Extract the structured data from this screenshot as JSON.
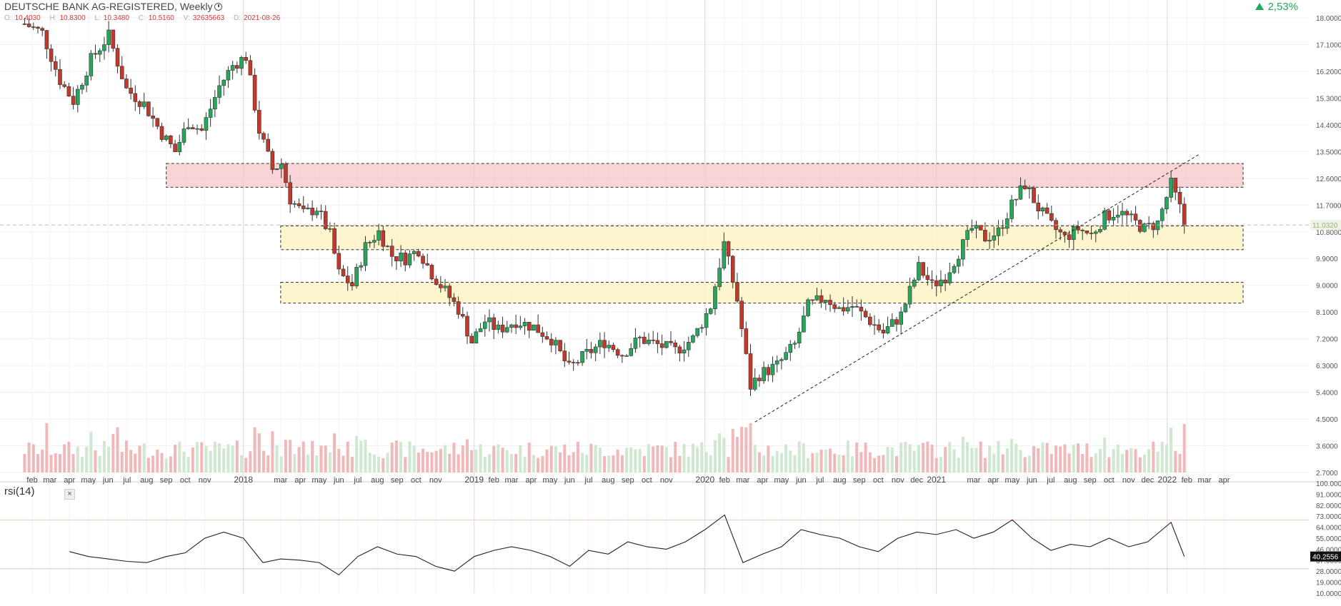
{
  "header": {
    "title": "DEUTSCHE BANK AG-REGISTERED, Weekly",
    "ohlc": [
      {
        "key": "O:",
        "value": "10.4030"
      },
      {
        "key": "H:",
        "value": "10.8300"
      },
      {
        "key": "L:",
        "value": "10.3480"
      },
      {
        "key": "C:",
        "value": "10.5160"
      },
      {
        "key": "V:",
        "value": "32635663"
      },
      {
        "key": "D:",
        "value": "2021-08-26"
      }
    ],
    "change": "2,53%"
  },
  "rsi_panel": {
    "label": "rsi(14)",
    "close_glyph": "×"
  },
  "colors": {
    "up": "#26a65b",
    "down": "#c0392b",
    "up_vol": "#cfe8cf",
    "down_vol": "#f0b8b8",
    "resistance_zone": "#f5c6c8",
    "support_zone": "#fbf3c4",
    "rsi_line": "#222222"
  },
  "chart_data": [
    {
      "type": "candlestick",
      "title": "DEUTSCHE BANK AG-REGISTERED, Weekly",
      "ylim": [
        2.7,
        18.0
      ],
      "y_ticks": [
        "18.0000",
        "17.1000",
        "16.2000",
        "15.3000",
        "14.4000",
        "13.5000",
        "12.6000",
        "11.7000",
        "10.8000",
        "9.9000",
        "9.0000",
        "8.1000",
        "7.2000",
        "6.3000",
        "5.4000",
        "4.5000",
        "3.6000",
        "2.7000"
      ],
      "x_ticks": [
        "feb",
        "mar",
        "apr",
        "may",
        "jun",
        "jul",
        "aug",
        "sep",
        "oct",
        "nov",
        "2018",
        "mar",
        "apr",
        "may",
        "jun",
        "jul",
        "aug",
        "sep",
        "oct",
        "nov",
        "2019",
        "feb",
        "mar",
        "apr",
        "may",
        "jun",
        "jul",
        "aug",
        "sep",
        "oct",
        "nov",
        "2020",
        "feb",
        "mar",
        "apr",
        "may",
        "jun",
        "jul",
        "aug",
        "sep",
        "oct",
        "nov",
        "dec",
        "2021",
        "mar",
        "apr",
        "may",
        "jun",
        "jul",
        "aug",
        "sep",
        "oct",
        "nov",
        "dec",
        "2022",
        "feb",
        "mar",
        "apr"
      ],
      "x_range": [
        "2017-01-15",
        "2022-05-01"
      ],
      "current_price_label": "11.0320",
      "close_series": [
        [
          "2017-01-20",
          17.8
        ],
        [
          "2017-02-17",
          17.5
        ],
        [
          "2017-03-17",
          15.9
        ],
        [
          "2017-04-07",
          15.2
        ],
        [
          "2017-05-05",
          16.6
        ],
        [
          "2017-06-02",
          17.4
        ],
        [
          "2017-06-30",
          15.6
        ],
        [
          "2017-07-28",
          15.1
        ],
        [
          "2017-08-25",
          14.1
        ],
        [
          "2017-09-15",
          13.5
        ],
        [
          "2017-10-06",
          14.5
        ],
        [
          "2017-10-27",
          14.2
        ],
        [
          "2017-11-24",
          15.7
        ],
        [
          "2017-12-15",
          16.4
        ],
        [
          "2018-01-05",
          16.7
        ],
        [
          "2018-01-26",
          14.2
        ],
        [
          "2018-02-16",
          12.9
        ],
        [
          "2018-03-02",
          13.1
        ],
        [
          "2018-03-16",
          11.9
        ],
        [
          "2018-04-06",
          11.4
        ],
        [
          "2018-04-27",
          11.6
        ],
        [
          "2018-05-18",
          10.7
        ],
        [
          "2018-06-01",
          9.4
        ],
        [
          "2018-06-22",
          9.0
        ],
        [
          "2018-07-13",
          10.3
        ],
        [
          "2018-08-03",
          10.8
        ],
        [
          "2018-08-24",
          10.0
        ],
        [
          "2018-09-14",
          9.9
        ],
        [
          "2018-10-05",
          10.2
        ],
        [
          "2018-10-26",
          9.4
        ],
        [
          "2018-11-16",
          8.8
        ],
        [
          "2018-12-07",
          8.2
        ],
        [
          "2018-12-28",
          7.1
        ],
        [
          "2019-01-18",
          7.8
        ],
        [
          "2019-02-08",
          7.5
        ],
        [
          "2019-03-08",
          7.8
        ],
        [
          "2019-04-05",
          7.6
        ],
        [
          "2019-05-03",
          7.2
        ],
        [
          "2019-05-31",
          6.2
        ],
        [
          "2019-06-28",
          6.7
        ],
        [
          "2019-07-26",
          7.1
        ],
        [
          "2019-08-23",
          6.7
        ],
        [
          "2019-09-20",
          7.2
        ],
        [
          "2019-10-18",
          7.0
        ],
        [
          "2019-11-15",
          6.8
        ],
        [
          "2019-12-13",
          7.2
        ],
        [
          "2020-01-10",
          8.3
        ],
        [
          "2020-01-31",
          10.4
        ],
        [
          "2020-02-21",
          8.5
        ],
        [
          "2020-03-13",
          5.6
        ],
        [
          "2020-03-27",
          6.0
        ],
        [
          "2020-04-24",
          6.3
        ],
        [
          "2020-05-22",
          7.0
        ],
        [
          "2020-06-12",
          8.3
        ],
        [
          "2020-07-10",
          8.6
        ],
        [
          "2020-07-31",
          8.2
        ],
        [
          "2020-08-21",
          8.3
        ],
        [
          "2020-09-18",
          7.8
        ],
        [
          "2020-10-09",
          7.4
        ],
        [
          "2020-11-06",
          8.0
        ],
        [
          "2020-12-04",
          9.6
        ],
        [
          "2020-12-25",
          9.0
        ],
        [
          "2021-01-15",
          9.3
        ],
        [
          "2021-02-05",
          10.1
        ],
        [
          "2021-02-26",
          10.9
        ],
        [
          "2021-03-19",
          10.6
        ],
        [
          "2021-04-09",
          10.8
        ],
        [
          "2021-04-30",
          11.7
        ],
        [
          "2021-05-21",
          12.4
        ],
        [
          "2021-06-11",
          11.6
        ],
        [
          "2021-07-02",
          11.0
        ],
        [
          "2021-07-23",
          10.6
        ],
        [
          "2021-08-13",
          10.9
        ],
        [
          "2021-09-03",
          10.7
        ],
        [
          "2021-09-24",
          11.3
        ],
        [
          "2021-10-15",
          11.5
        ],
        [
          "2021-11-05",
          11.2
        ],
        [
          "2021-11-26",
          10.9
        ],
        [
          "2021-12-17",
          11.1
        ],
        [
          "2022-01-07",
          12.4
        ],
        [
          "2022-01-21",
          11.6
        ],
        [
          "2022-01-28",
          11.03
        ]
      ],
      "zones": [
        {
          "kind": "resistance",
          "from": "2017-09-01",
          "to": "2022-05-01",
          "low": 12.3,
          "high": 13.1
        },
        {
          "kind": "support",
          "from": "2018-03-01",
          "to": "2022-05-01",
          "low": 10.2,
          "high": 11.0
        },
        {
          "kind": "support",
          "from": "2018-03-01",
          "to": "2022-05-01",
          "low": 8.4,
          "high": 9.1
        }
      ],
      "trendline": {
        "from": [
          "2020-03-20",
          4.4
        ],
        "to": [
          "2022-02-20",
          13.4
        ]
      }
    },
    {
      "type": "line",
      "title": "rsi(14)",
      "ylim": [
        10,
        100
      ],
      "y_ticks": [
        "100.0000",
        "91.0000",
        "82.0000",
        "73.0000",
        "64.0000",
        "55.0000",
        "46.0000",
        "37.0000",
        "28.0000",
        "19.0000",
        "10.0000"
      ],
      "last_value_label": "40.2556",
      "levels": [
        70,
        30
      ],
      "series": [
        [
          "2017-04-01",
          44
        ],
        [
          "2017-05-01",
          40
        ],
        [
          "2017-06-01",
          38
        ],
        [
          "2017-07-01",
          36
        ],
        [
          "2017-08-01",
          35
        ],
        [
          "2017-09-01",
          40
        ],
        [
          "2017-10-01",
          43
        ],
        [
          "2017-11-01",
          55
        ],
        [
          "2017-12-01",
          60
        ],
        [
          "2018-01-01",
          55
        ],
        [
          "2018-02-01",
          35
        ],
        [
          "2018-03-01",
          38
        ],
        [
          "2018-04-01",
          37
        ],
        [
          "2018-05-01",
          35
        ],
        [
          "2018-06-01",
          25
        ],
        [
          "2018-07-01",
          40
        ],
        [
          "2018-08-01",
          48
        ],
        [
          "2018-09-01",
          42
        ],
        [
          "2018-10-01",
          40
        ],
        [
          "2018-11-01",
          32
        ],
        [
          "2018-12-01",
          28
        ],
        [
          "2019-01-01",
          40
        ],
        [
          "2019-02-01",
          45
        ],
        [
          "2019-03-01",
          48
        ],
        [
          "2019-04-01",
          45
        ],
        [
          "2019-05-01",
          40
        ],
        [
          "2019-06-01",
          32
        ],
        [
          "2019-07-01",
          45
        ],
        [
          "2019-08-01",
          42
        ],
        [
          "2019-09-01",
          52
        ],
        [
          "2019-10-01",
          48
        ],
        [
          "2019-11-01",
          46
        ],
        [
          "2019-12-01",
          52
        ],
        [
          "2020-01-01",
          62
        ],
        [
          "2020-02-01",
          74
        ],
        [
          "2020-03-01",
          35
        ],
        [
          "2020-04-01",
          42
        ],
        [
          "2020-05-01",
          48
        ],
        [
          "2020-06-01",
          62
        ],
        [
          "2020-07-01",
          58
        ],
        [
          "2020-08-01",
          55
        ],
        [
          "2020-09-01",
          48
        ],
        [
          "2020-10-01",
          44
        ],
        [
          "2020-11-01",
          55
        ],
        [
          "2020-12-01",
          60
        ],
        [
          "2021-01-01",
          58
        ],
        [
          "2021-02-01",
          62
        ],
        [
          "2021-03-01",
          55
        ],
        [
          "2021-04-01",
          60
        ],
        [
          "2021-05-01",
          70
        ],
        [
          "2021-06-01",
          55
        ],
        [
          "2021-07-01",
          45
        ],
        [
          "2021-08-01",
          50
        ],
        [
          "2021-09-01",
          48
        ],
        [
          "2021-10-01",
          55
        ],
        [
          "2021-11-01",
          48
        ],
        [
          "2021-12-01",
          52
        ],
        [
          "2022-01-07",
          68
        ],
        [
          "2022-01-28",
          40
        ]
      ]
    }
  ]
}
